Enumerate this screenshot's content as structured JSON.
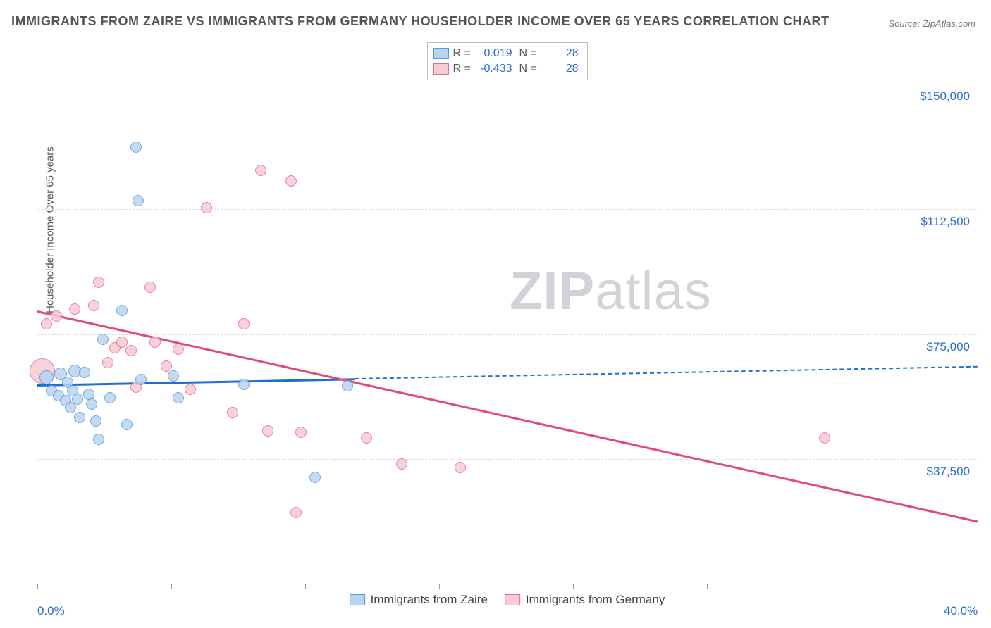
{
  "title": "IMMIGRANTS FROM ZAIRE VS IMMIGRANTS FROM GERMANY HOUSEHOLDER INCOME OVER 65 YEARS CORRELATION CHART",
  "source_label": "Source: ZipAtlas.com",
  "ylabel": "Householder Income Over 65 years",
  "watermark": {
    "part1": "ZIP",
    "part2": "atlas"
  },
  "chart": {
    "type": "scatter",
    "xlim": [
      0,
      40
    ],
    "ylim": [
      0,
      162500
    ],
    "x_ticks": [
      0,
      5.7,
      11.4,
      17.1,
      22.8,
      28.5,
      34.2,
      40
    ],
    "x_tick_labels_shown": {
      "0": "0.0%",
      "40": "40.0%"
    },
    "y_gridlines": [
      37500,
      75000,
      112500,
      150000
    ],
    "y_tick_labels": [
      "$37,500",
      "$75,000",
      "$112,500",
      "$150,000"
    ],
    "background_color": "#ffffff",
    "grid_color": "#dddddd",
    "axis_color": "#999999",
    "label_color": "#2b6cd4",
    "series": [
      {
        "name": "Immigrants from Zaire",
        "fill": "#b9d4ef",
        "stroke": "#5a9bdc",
        "trend_color": "#1f6fd1",
        "r_value": "0.019",
        "n_value": "28",
        "trend": {
          "x1": 0,
          "y1": 60000,
          "x2": 40,
          "y2": 65500,
          "solid_until_x": 13.5
        },
        "points": [
          {
            "x": 0.4,
            "y": 62000,
            "r": 10
          },
          {
            "x": 0.6,
            "y": 58000,
            "r": 8
          },
          {
            "x": 0.9,
            "y": 56500,
            "r": 8
          },
          {
            "x": 1.0,
            "y": 63000,
            "r": 9
          },
          {
            "x": 1.2,
            "y": 55000,
            "r": 8
          },
          {
            "x": 1.3,
            "y": 60500,
            "r": 8
          },
          {
            "x": 1.4,
            "y": 53000,
            "r": 8
          },
          {
            "x": 1.5,
            "y": 58000,
            "r": 8
          },
          {
            "x": 1.6,
            "y": 64000,
            "r": 9
          },
          {
            "x": 1.7,
            "y": 55500,
            "r": 8
          },
          {
            "x": 1.8,
            "y": 50000,
            "r": 8
          },
          {
            "x": 2.0,
            "y": 63500,
            "r": 8
          },
          {
            "x": 2.2,
            "y": 57000,
            "r": 8
          },
          {
            "x": 2.3,
            "y": 54000,
            "r": 8
          },
          {
            "x": 2.5,
            "y": 49000,
            "r": 8
          },
          {
            "x": 2.6,
            "y": 43500,
            "r": 8
          },
          {
            "x": 2.8,
            "y": 73500,
            "r": 8
          },
          {
            "x": 3.1,
            "y": 56000,
            "r": 8
          },
          {
            "x": 3.6,
            "y": 82000,
            "r": 8
          },
          {
            "x": 3.8,
            "y": 48000,
            "r": 8
          },
          {
            "x": 4.2,
            "y": 131000,
            "r": 8
          },
          {
            "x": 4.3,
            "y": 115000,
            "r": 8
          },
          {
            "x": 4.4,
            "y": 61500,
            "r": 8
          },
          {
            "x": 5.8,
            "y": 62500,
            "r": 8
          },
          {
            "x": 6.0,
            "y": 56000,
            "r": 8
          },
          {
            "x": 8.8,
            "y": 60000,
            "r": 8
          },
          {
            "x": 11.8,
            "y": 32000,
            "r": 8
          },
          {
            "x": 13.2,
            "y": 59500,
            "r": 8
          }
        ]
      },
      {
        "name": "Immigrants from Germany",
        "fill": "#f7cbd5",
        "stroke": "#e36f8f",
        "trend_color": "#e24a77",
        "r_value": "-0.433",
        "n_value": "28",
        "trend": {
          "x1": 0,
          "y1": 82000,
          "x2": 40,
          "y2": 19000,
          "solid_until_x": 40
        },
        "points": [
          {
            "x": 0.2,
            "y": 64000,
            "r": 18
          },
          {
            "x": 0.4,
            "y": 78000,
            "r": 8
          },
          {
            "x": 0.8,
            "y": 80500,
            "r": 8
          },
          {
            "x": 1.6,
            "y": 82500,
            "r": 8
          },
          {
            "x": 2.4,
            "y": 83500,
            "r": 8
          },
          {
            "x": 2.6,
            "y": 90500,
            "r": 8
          },
          {
            "x": 3.0,
            "y": 66500,
            "r": 8
          },
          {
            "x": 3.3,
            "y": 71000,
            "r": 8
          },
          {
            "x": 3.6,
            "y": 72500,
            "r": 8
          },
          {
            "x": 4.0,
            "y": 70000,
            "r": 8
          },
          {
            "x": 4.2,
            "y": 59000,
            "r": 8
          },
          {
            "x": 4.8,
            "y": 89000,
            "r": 8
          },
          {
            "x": 5.0,
            "y": 72500,
            "r": 8
          },
          {
            "x": 5.5,
            "y": 65500,
            "r": 8
          },
          {
            "x": 6.0,
            "y": 70500,
            "r": 8
          },
          {
            "x": 6.5,
            "y": 58500,
            "r": 8
          },
          {
            "x": 7.2,
            "y": 113000,
            "r": 8
          },
          {
            "x": 8.3,
            "y": 51500,
            "r": 8
          },
          {
            "x": 8.8,
            "y": 78000,
            "r": 8
          },
          {
            "x": 9.5,
            "y": 124000,
            "r": 8
          },
          {
            "x": 9.8,
            "y": 46000,
            "r": 8
          },
          {
            "x": 10.8,
            "y": 121000,
            "r": 8
          },
          {
            "x": 11.0,
            "y": 21500,
            "r": 8
          },
          {
            "x": 11.2,
            "y": 45500,
            "r": 8
          },
          {
            "x": 14.0,
            "y": 44000,
            "r": 8
          },
          {
            "x": 15.5,
            "y": 36000,
            "r": 8
          },
          {
            "x": 18.0,
            "y": 35000,
            "r": 8
          },
          {
            "x": 33.5,
            "y": 44000,
            "r": 8
          }
        ]
      }
    ]
  },
  "legend_bottom": [
    {
      "label": "Immigrants from Zaire",
      "fill": "#b9d4ef",
      "stroke": "#5a9bdc"
    },
    {
      "label": "Immigrants from Germany",
      "fill": "#f7cbd5",
      "stroke": "#e36f8f"
    }
  ]
}
